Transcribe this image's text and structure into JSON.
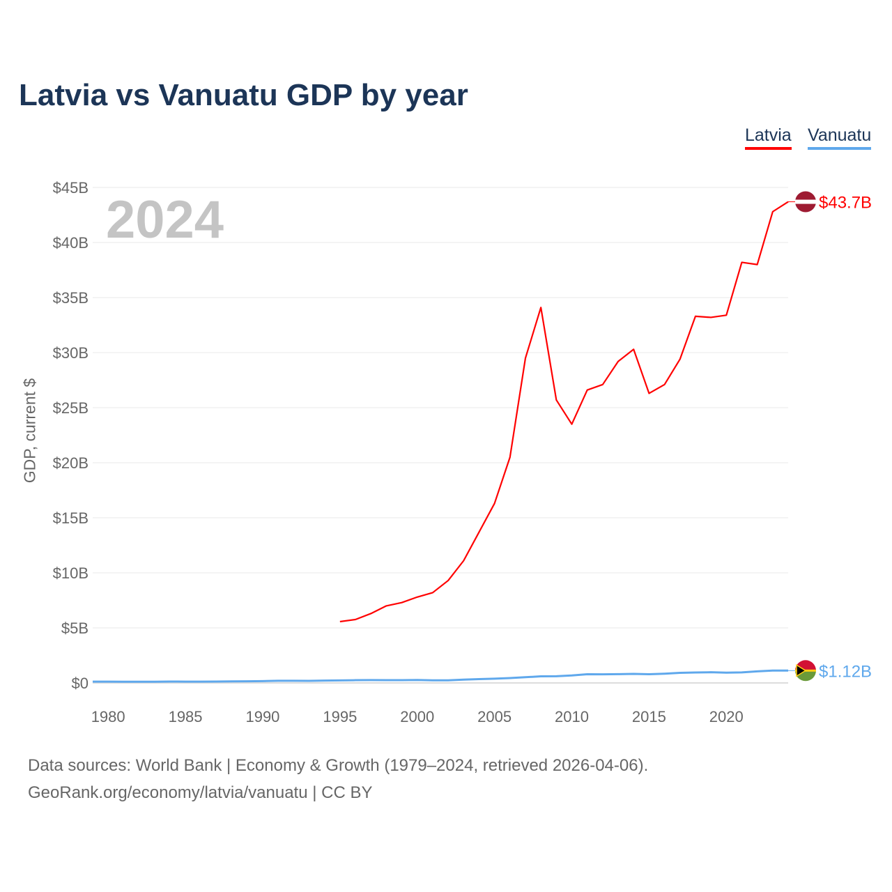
{
  "chart_data": {
    "type": "line",
    "title": "Latvia vs Vanuatu GDP by year",
    "ylabel": "GDP, current $",
    "xlabel": "",
    "xlim": [
      1979,
      2024
    ],
    "ylim": [
      0,
      45
    ],
    "yticks": [
      0,
      5,
      10,
      15,
      20,
      25,
      30,
      35,
      40,
      45
    ],
    "ytick_labels": [
      "$0",
      "$5B",
      "$10B",
      "$15B",
      "$20B",
      "$25B",
      "$30B",
      "$35B",
      "$40B",
      "$45B"
    ],
    "xticks": [
      1980,
      1985,
      1990,
      1995,
      2000,
      2005,
      2010,
      2015,
      2020
    ],
    "xtick_labels": [
      "1980",
      "1985",
      "1990",
      "1995",
      "2000",
      "2005",
      "2010",
      "2015",
      "2020"
    ],
    "grid": true,
    "legend_position": "top-right",
    "current_year": "2024",
    "series": [
      {
        "name": "Latvia",
        "color": "#ff0000",
        "end_label": "$43.7B",
        "x": [
          1995,
          1996,
          1997,
          1998,
          1999,
          2000,
          2001,
          2002,
          2003,
          2004,
          2005,
          2006,
          2007,
          2008,
          2009,
          2010,
          2011,
          2012,
          2013,
          2014,
          2015,
          2016,
          2017,
          2018,
          2019,
          2020,
          2021,
          2022,
          2023,
          2024
        ],
        "values": [
          5.57,
          5.76,
          6.3,
          7.0,
          7.3,
          7.8,
          8.2,
          9.3,
          11.1,
          13.7,
          16.3,
          20.5,
          29.5,
          34.1,
          25.7,
          23.5,
          26.6,
          27.1,
          29.2,
          30.3,
          26.3,
          27.1,
          29.4,
          33.3,
          33.2,
          33.4,
          38.2,
          38.0,
          42.8,
          43.7
        ]
      },
      {
        "name": "Vanuatu",
        "color": "#5fa8ec",
        "end_label": "$1.12B",
        "x": [
          1979,
          1980,
          1981,
          1982,
          1983,
          1984,
          1985,
          1986,
          1987,
          1988,
          1989,
          1990,
          1991,
          1992,
          1993,
          1994,
          1995,
          1996,
          1997,
          1998,
          1999,
          2000,
          2001,
          2002,
          2003,
          2004,
          2005,
          2006,
          2007,
          2008,
          2009,
          2010,
          2011,
          2012,
          2013,
          2014,
          2015,
          2016,
          2017,
          2018,
          2019,
          2020,
          2021,
          2022,
          2023,
          2024
        ],
        "values": [
          0.12,
          0.12,
          0.11,
          0.11,
          0.11,
          0.13,
          0.12,
          0.12,
          0.13,
          0.14,
          0.15,
          0.17,
          0.2,
          0.2,
          0.19,
          0.21,
          0.23,
          0.25,
          0.26,
          0.25,
          0.25,
          0.27,
          0.24,
          0.24,
          0.3,
          0.35,
          0.39,
          0.44,
          0.52,
          0.6,
          0.61,
          0.68,
          0.79,
          0.78,
          0.8,
          0.82,
          0.79,
          0.84,
          0.92,
          0.95,
          0.97,
          0.93,
          0.96,
          1.05,
          1.12,
          1.12
        ]
      }
    ]
  },
  "sources": {
    "line1": "Data sources: World Bank | Economy & Growth (1979–2024, retrieved 2026-04-06).",
    "line2": "GeoRank.org/economy/latvia/vanuatu | CC BY"
  }
}
